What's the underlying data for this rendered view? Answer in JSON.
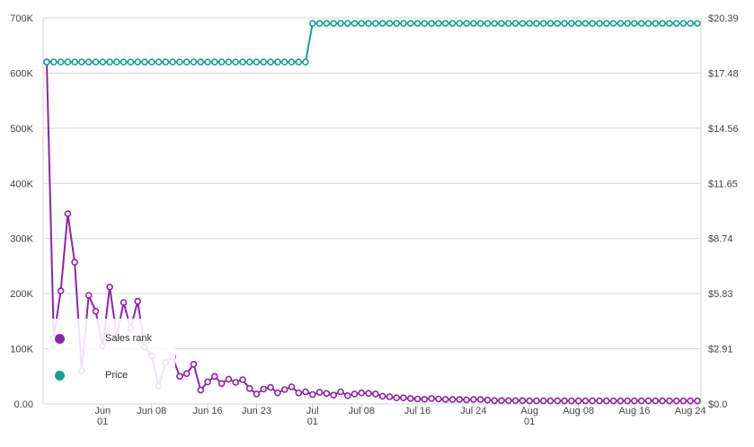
{
  "chart_data": {
    "type": "line",
    "title": "",
    "x_tick_labels": [
      {
        "day": 8,
        "line1": "Jun",
        "line2": "01"
      },
      {
        "day": 15,
        "line1": "Jun 08",
        "line2": ""
      },
      {
        "day": 23,
        "line1": "Jun 16",
        "line2": ""
      },
      {
        "day": 30,
        "line1": "Jun 23",
        "line2": ""
      },
      {
        "day": 38,
        "line1": "Jul",
        "line2": "01"
      },
      {
        "day": 45,
        "line1": "Jul 08",
        "line2": ""
      },
      {
        "day": 53,
        "line1": "Jul 16",
        "line2": ""
      },
      {
        "day": 61,
        "line1": "Jul 24",
        "line2": ""
      },
      {
        "day": 69,
        "line1": "Aug",
        "line2": "01"
      },
      {
        "day": 76,
        "line1": "Aug 08",
        "line2": ""
      },
      {
        "day": 84,
        "line1": "Aug 16",
        "line2": ""
      },
      {
        "day": 92,
        "line1": "Aug 24",
        "line2": ""
      }
    ],
    "y_left": {
      "label": "Sales rank",
      "ylim": [
        0,
        700000
      ],
      "ticks": [
        0,
        100000,
        200000,
        300000,
        400000,
        500000,
        600000,
        700000
      ],
      "tick_labels": [
        "0.00",
        "100K",
        "200K",
        "300K",
        "400K",
        "500K",
        "600K",
        "700K"
      ]
    },
    "y_right": {
      "label": "Price",
      "ylim": [
        0,
        20.39
      ],
      "ticks": [
        0,
        2.91,
        5.83,
        8.74,
        11.65,
        14.56,
        17.48,
        20.39
      ],
      "tick_labels": [
        "$0.0",
        "$2.91",
        "$5.83",
        "$8.74",
        "$11.65",
        "$14.56",
        "$17.48",
        "$20.39"
      ]
    },
    "grid": true,
    "legend_position": "bottom-left",
    "series": [
      {
        "name": "Sales rank",
        "axis": "left",
        "color": "#8e24aa",
        "x": [
          0,
          1,
          2,
          3,
          4,
          5,
          6,
          7,
          8,
          9,
          10,
          11,
          12,
          13,
          14,
          15,
          16,
          17,
          18,
          19,
          20,
          21,
          22,
          23,
          24,
          25,
          26,
          27,
          28,
          29,
          30,
          31,
          32,
          33,
          34,
          35,
          36,
          37,
          38,
          39,
          40,
          41,
          42,
          43,
          44,
          45,
          46,
          47,
          48,
          49,
          50,
          51,
          52,
          53,
          54,
          55,
          56,
          57,
          58,
          59,
          60,
          61,
          62,
          63,
          64,
          65,
          66,
          67,
          68,
          69,
          70,
          71,
          72,
          73,
          74,
          75,
          76,
          77,
          78,
          79,
          80,
          81,
          82,
          83,
          84,
          85,
          86,
          87,
          88,
          89,
          90,
          91,
          92,
          93
        ],
        "y": [
          620000,
          120000,
          205000,
          345000,
          257000,
          60000,
          197000,
          168000,
          105000,
          212000,
          123000,
          184000,
          137000,
          186000,
          103000,
          87000,
          32000,
          75000,
          85000,
          50000,
          55000,
          72000,
          25000,
          40000,
          50000,
          37000,
          45000,
          39000,
          44000,
          28000,
          18000,
          27000,
          30000,
          20000,
          26000,
          31000,
          20000,
          22000,
          17000,
          21000,
          19000,
          16000,
          22000,
          15000,
          18000,
          20000,
          19000,
          18000,
          14000,
          13000,
          11000,
          11000,
          10000,
          9000,
          8500,
          10000,
          9000,
          8000,
          8000,
          8000,
          7500,
          8000,
          8000,
          7000,
          6000,
          6000,
          6000,
          6000,
          6000,
          5500,
          5500,
          5500,
          5500,
          5500,
          5500,
          5500,
          5500,
          5500,
          5500,
          5500,
          5500,
          5500,
          5500,
          5500,
          5500,
          5500,
          5500,
          5500,
          5500,
          5500,
          5500,
          5500,
          5500,
          5500
        ]
      },
      {
        "name": "Price",
        "axis": "right",
        "color": "#11a393",
        "x": [
          0,
          1,
          2,
          3,
          4,
          5,
          6,
          7,
          8,
          9,
          10,
          11,
          12,
          13,
          14,
          15,
          16,
          17,
          18,
          19,
          20,
          21,
          22,
          23,
          24,
          25,
          26,
          27,
          28,
          29,
          30,
          31,
          32,
          33,
          34,
          35,
          36,
          37,
          38,
          39,
          40,
          41,
          42,
          43,
          44,
          45,
          46,
          47,
          48,
          49,
          50,
          51,
          52,
          53,
          54,
          55,
          56,
          57,
          58,
          59,
          60,
          61,
          62,
          63,
          64,
          65,
          66,
          67,
          68,
          69,
          70,
          71,
          72,
          73,
          74,
          75,
          76,
          77,
          78,
          79,
          80,
          81,
          82,
          83,
          84,
          85,
          86,
          87,
          88,
          89,
          90,
          91,
          92,
          93
        ],
        "y": [
          18.06,
          18.06,
          18.06,
          18.06,
          18.06,
          18.06,
          18.06,
          18.06,
          18.06,
          18.06,
          18.06,
          18.06,
          18.06,
          18.06,
          18.06,
          18.06,
          18.06,
          18.06,
          18.06,
          18.06,
          18.06,
          18.06,
          18.06,
          18.06,
          18.06,
          18.06,
          18.06,
          18.06,
          18.06,
          18.06,
          18.06,
          18.06,
          18.06,
          18.06,
          18.06,
          18.06,
          18.06,
          18.06,
          20.1,
          20.1,
          20.1,
          20.1,
          20.1,
          20.1,
          20.1,
          20.1,
          20.1,
          20.1,
          20.1,
          20.1,
          20.1,
          20.1,
          20.1,
          20.1,
          20.1,
          20.1,
          20.1,
          20.1,
          20.1,
          20.1,
          20.1,
          20.1,
          20.1,
          20.1,
          20.1,
          20.1,
          20.1,
          20.1,
          20.1,
          20.1,
          20.1,
          20.1,
          20.1,
          20.1,
          20.1,
          20.1,
          20.1,
          20.1,
          20.1,
          20.1,
          20.1,
          20.1,
          20.1,
          20.1,
          20.1,
          20.1,
          20.1,
          20.1,
          20.1,
          20.1,
          20.1,
          20.1,
          20.1,
          20.1
        ]
      }
    ]
  },
  "legend": {
    "items": [
      {
        "label": "Sales rank",
        "color": "#8e24aa"
      },
      {
        "label": "Price",
        "color": "#11a393"
      }
    ]
  }
}
